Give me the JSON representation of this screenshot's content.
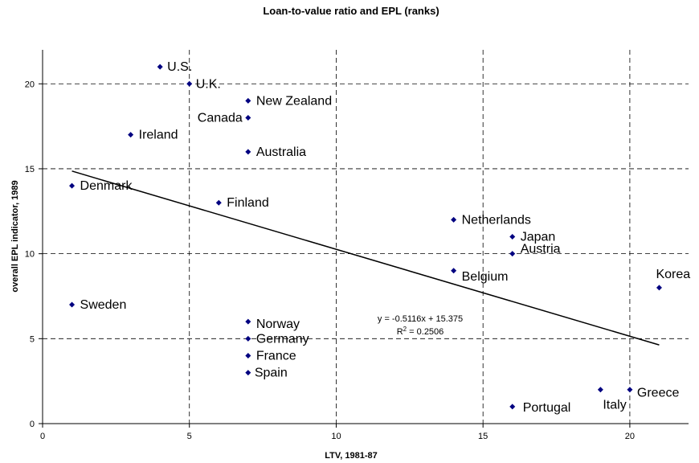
{
  "chart_data": {
    "type": "scatter",
    "title": "Loan-to-value ratio and EPL (ranks)",
    "xlabel": "LTV, 1981-87",
    "ylabel": "overall EPL indicator, 1989",
    "xlim": [
      0,
      22
    ],
    "ylim": [
      0,
      22
    ],
    "xticks": [
      0,
      5,
      10,
      15,
      20
    ],
    "yticks": [
      0,
      5,
      10,
      15,
      20
    ],
    "grid": true,
    "marker_color": "#000080",
    "points": [
      {
        "label": "U.S.",
        "x": 4,
        "y": 21
      },
      {
        "label": "U.K.",
        "x": 5,
        "y": 20
      },
      {
        "label": "New Zealand",
        "x": 7,
        "y": 19
      },
      {
        "label": "Canada",
        "x": 7,
        "y": 18
      },
      {
        "label": "Ireland",
        "x": 3,
        "y": 17
      },
      {
        "label": "Australia",
        "x": 7,
        "y": 16
      },
      {
        "label": "Denmark",
        "x": 1,
        "y": 14
      },
      {
        "label": "Finland",
        "x": 6,
        "y": 13
      },
      {
        "label": "Netherlands",
        "x": 14,
        "y": 12
      },
      {
        "label": "Japan",
        "x": 16,
        "y": 11
      },
      {
        "label": "Austria",
        "x": 16,
        "y": 10
      },
      {
        "label": "Belgium",
        "x": 14,
        "y": 9
      },
      {
        "label": "Korea",
        "x": 21,
        "y": 8
      },
      {
        "label": "Sweden",
        "x": 1,
        "y": 7
      },
      {
        "label": "Norway",
        "x": 7,
        "y": 6
      },
      {
        "label": "Germany",
        "x": 7,
        "y": 5
      },
      {
        "label": "France",
        "x": 7,
        "y": 4
      },
      {
        "label": "Spain",
        "x": 7,
        "y": 3
      },
      {
        "label": "Italy",
        "x": 19,
        "y": 2
      },
      {
        "label": "Greece",
        "x": 20,
        "y": 2
      },
      {
        "label": "Portugal",
        "x": 16,
        "y": 1
      }
    ],
    "trendline": {
      "slope": -0.5116,
      "intercept": 15.375,
      "x_start": 1,
      "x_end": 21,
      "equation": "y = -0.5116x + 15.375",
      "r2_prefix": "R",
      "r2_sup": "2",
      "r2_value": " = 0.2506"
    }
  }
}
